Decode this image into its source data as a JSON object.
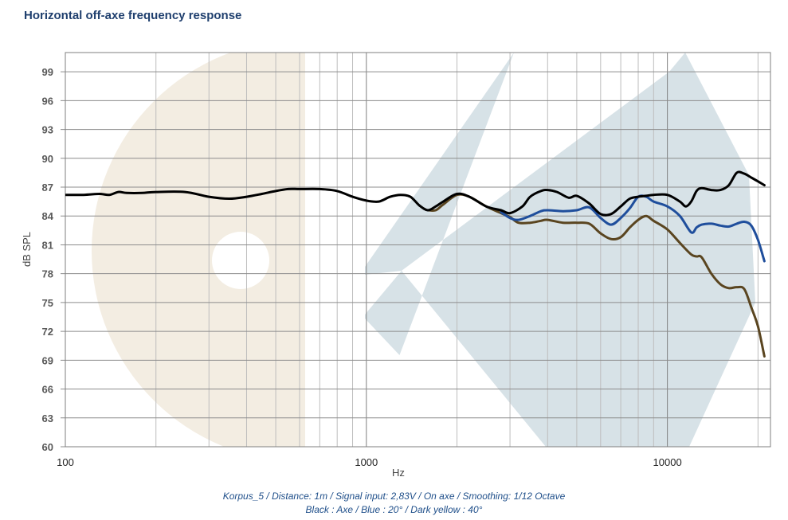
{
  "title": "Horizontal off-axe frequency response",
  "caption_line1": "Korpus_5 / Distance: 1m / Signal input: 2,83V / On axe / Smoothing: 1/12 Octave",
  "caption_line2": "Black : Axe / Blue : 20° / Dark yellow : 40°",
  "chart_data": {
    "type": "line",
    "title": "Horizontal off-axe frequency response",
    "xlabel": "Hz",
    "ylabel": "dB SPL",
    "x_scale": "log",
    "xlim": [
      100,
      22000
    ],
    "ylim": [
      60,
      101
    ],
    "x_ticks": [
      100,
      1000,
      10000
    ],
    "x_tick_labels": [
      "100",
      "1000",
      "10000"
    ],
    "y_ticks": [
      60,
      63,
      66,
      69,
      72,
      75,
      78,
      81,
      84,
      87,
      90,
      93,
      96,
      99
    ],
    "grid": true,
    "colors": {
      "axe": "#000000",
      "deg20": "#1f4e9c",
      "deg40": "#5a4520",
      "background_left": "#f3ede2",
      "background_right": "#d7e2e7"
    },
    "series": [
      {
        "key": "axe",
        "x": [
          100,
          115,
          130,
          140,
          150,
          160,
          180,
          200,
          250,
          300,
          350,
          400,
          450,
          500,
          550,
          600,
          700,
          800,
          900,
          1000,
          1100,
          1200,
          1300,
          1400,
          1500,
          1600,
          1700,
          1800,
          2000,
          2200,
          2500,
          2800,
          3000,
          3300,
          3500,
          3800,
          4000,
          4300,
          4700,
          5000,
          5500,
          6000,
          6500,
          7000,
          7500,
          8000,
          8500,
          9000,
          10000,
          11000,
          11500,
          12000,
          12500,
          13000,
          14000,
          15000,
          16000,
          17000,
          18000,
          19000,
          20000,
          21000
        ],
        "values": [
          86.2,
          86.2,
          86.3,
          86.2,
          86.5,
          86.4,
          86.4,
          86.5,
          86.5,
          86.0,
          85.8,
          86.0,
          86.3,
          86.6,
          86.8,
          86.8,
          86.8,
          86.6,
          86.0,
          85.6,
          85.5,
          86.0,
          86.2,
          86.0,
          85.1,
          84.6,
          85.0,
          85.5,
          86.3,
          86.0,
          85.0,
          84.6,
          84.3,
          85.0,
          86.0,
          86.6,
          86.7,
          86.5,
          85.9,
          86.1,
          85.3,
          84.2,
          84.2,
          85.0,
          85.8,
          86.0,
          86.1,
          86.2,
          86.2,
          85.5,
          85.0,
          85.5,
          86.6,
          86.9,
          86.7,
          86.7,
          87.2,
          88.5,
          88.4,
          88.0,
          87.6,
          87.2
        ]
      },
      {
        "key": "deg20",
        "x": [
          2800,
          3000,
          3200,
          3500,
          3800,
          4000,
          4500,
          5000,
          5500,
          6000,
          6500,
          7000,
          7500,
          8000,
          8500,
          9000,
          10000,
          11000,
          12000,
          12500,
          13000,
          14000,
          15000,
          16000,
          17000,
          18000,
          19000,
          20000,
          21000
        ],
        "values": [
          84.4,
          83.8,
          83.6,
          84.0,
          84.5,
          84.6,
          84.5,
          84.6,
          84.9,
          83.8,
          83.1,
          83.8,
          84.8,
          86.0,
          86.0,
          85.5,
          85.0,
          84.0,
          82.3,
          82.8,
          83.1,
          83.2,
          83.0,
          82.9,
          83.2,
          83.4,
          83.0,
          81.5,
          79.3
        ]
      },
      {
        "key": "deg40",
        "x": [
          1600,
          1700,
          1800,
          2000,
          2200,
          2500,
          2800,
          3000,
          3200,
          3500,
          3800,
          4000,
          4500,
          5000,
          5500,
          6000,
          6500,
          7000,
          7500,
          8000,
          8500,
          9000,
          10000,
          11000,
          12000,
          12500,
          13000,
          14000,
          15000,
          16000,
          17000,
          18000,
          19000,
          20000,
          21000
        ],
        "values": [
          84.6,
          84.6,
          85.2,
          86.2,
          86.0,
          85.0,
          84.3,
          83.9,
          83.3,
          83.3,
          83.5,
          83.6,
          83.3,
          83.3,
          83.2,
          82.2,
          81.6,
          81.8,
          82.8,
          83.6,
          84.0,
          83.5,
          82.6,
          81.2,
          80.0,
          79.8,
          79.7,
          78.0,
          76.9,
          76.5,
          76.6,
          76.4,
          74.5,
          72.5,
          69.4
        ]
      }
    ]
  }
}
